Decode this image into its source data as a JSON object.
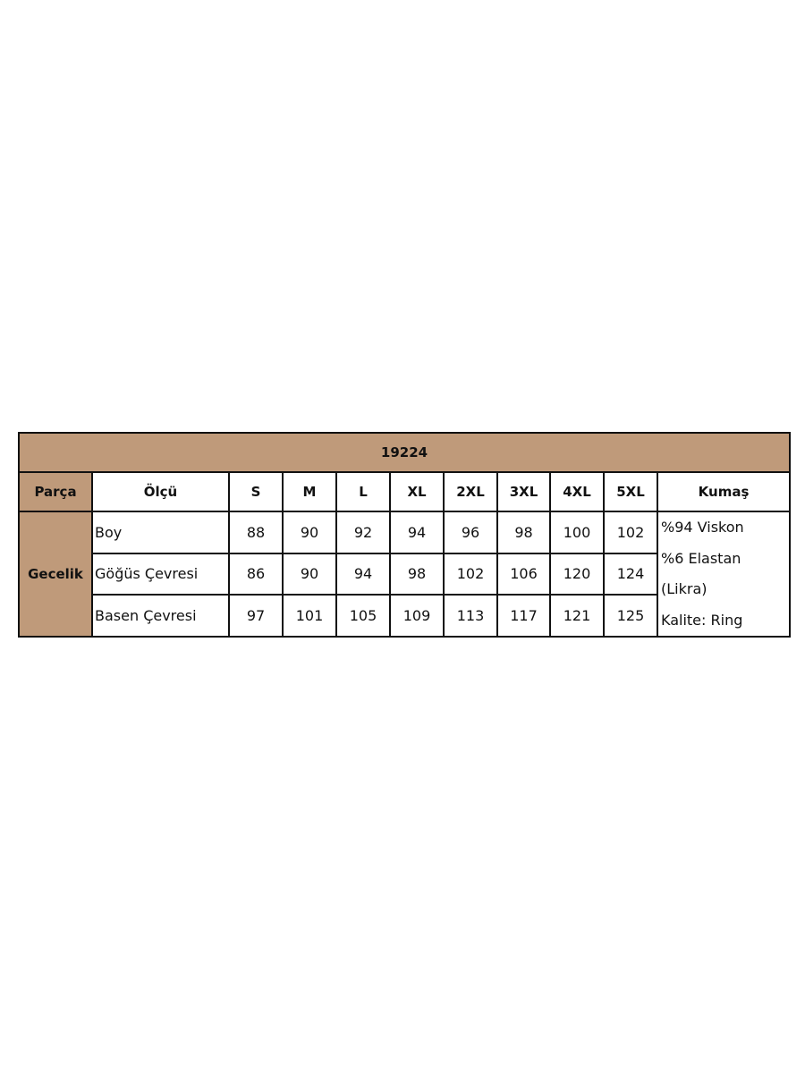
{
  "title": "19224",
  "colors": {
    "header_bg": "#bf9a7a",
    "border": "#111111"
  },
  "headers": {
    "part": "Parça",
    "measure": "Ölçü",
    "sizes": [
      "S",
      "M",
      "L",
      "XL",
      "2XL",
      "3XL",
      "4XL",
      "5XL"
    ],
    "fabric": "Kumaş"
  },
  "part_name": "Gecelik",
  "rows": [
    {
      "label": "Boy",
      "values": [
        "88",
        "90",
        "92",
        "94",
        "96",
        "98",
        "100",
        "102"
      ]
    },
    {
      "label": "Göğüs Çevresi",
      "values": [
        "86",
        "90",
        "94",
        "98",
        "102",
        "106",
        "120",
        "124"
      ]
    },
    {
      "label": "Basen Çevresi",
      "values": [
        "97",
        "101",
        "105",
        "109",
        "113",
        "117",
        "121",
        "125"
      ]
    }
  ],
  "fabric_lines": [
    "%94 Viskon",
    "%6 Elastan",
    "(Likra)",
    "Kalite: Ring"
  ]
}
